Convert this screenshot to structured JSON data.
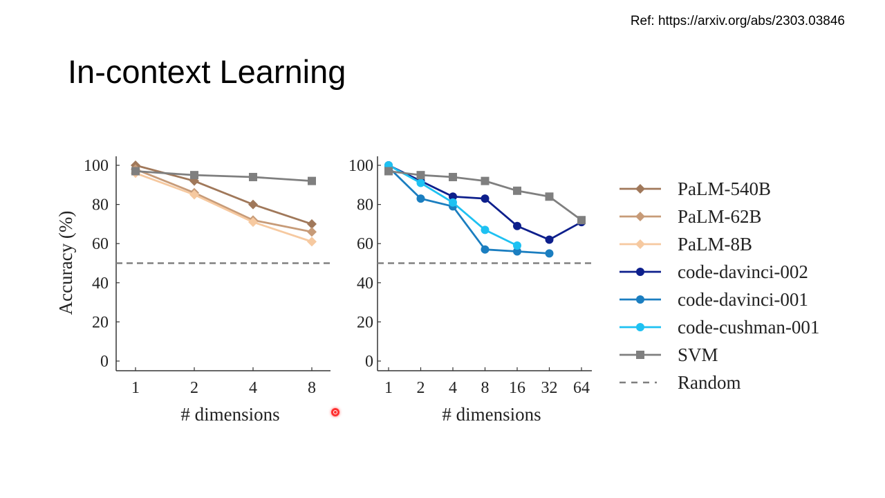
{
  "slide": {
    "ref": "Ref: https://arxiv.org/abs/2303.03846",
    "title": "In-context Learning"
  },
  "chart_data": [
    {
      "type": "line",
      "xlabel": "# dimensions",
      "ylabel": "Accuracy (%)",
      "x": [
        "1",
        "2",
        "4",
        "8"
      ],
      "ylim": [
        0,
        100
      ],
      "yticks": [
        0,
        20,
        40,
        60,
        80,
        100
      ],
      "series": [
        {
          "name": "PaLM-540B",
          "color": "#a0785a",
          "marker": "diamond",
          "values": [
            100,
            92,
            80,
            70
          ]
        },
        {
          "name": "PaLM-62B",
          "color": "#c79b78",
          "marker": "diamond",
          "values": [
            98,
            86,
            72,
            66
          ]
        },
        {
          "name": "PaLM-8B",
          "color": "#f6c9a0",
          "marker": "diamond",
          "values": [
            96,
            85,
            71,
            61
          ]
        },
        {
          "name": "SVM",
          "color": "#7f7f7f",
          "marker": "square",
          "values": [
            97,
            95,
            94,
            92
          ]
        }
      ],
      "reference_line": {
        "name": "Random",
        "value": 50
      }
    },
    {
      "type": "line",
      "xlabel": "# dimensions",
      "ylabel": "",
      "x": [
        "1",
        "2",
        "4",
        "8",
        "16",
        "32",
        "64"
      ],
      "ylim": [
        0,
        100
      ],
      "yticks": [
        0,
        20,
        40,
        60,
        80,
        100
      ],
      "series": [
        {
          "name": "code-davinci-002",
          "color": "#0d1f8c",
          "marker": "circle",
          "values": [
            100,
            92,
            84,
            83,
            69,
            62,
            71
          ]
        },
        {
          "name": "code-davinci-001",
          "color": "#1b7ec0",
          "marker": "circle",
          "values": [
            99,
            83,
            79,
            57,
            56,
            55,
            null
          ]
        },
        {
          "name": "code-cushman-001",
          "color": "#1ec1f2",
          "marker": "circle",
          "values": [
            100,
            91,
            81,
            67,
            59,
            null,
            null
          ]
        },
        {
          "name": "SVM",
          "color": "#7f7f7f",
          "marker": "square",
          "values": [
            97,
            95,
            94,
            92,
            87,
            84,
            72
          ]
        }
      ],
      "reference_line": {
        "name": "Random",
        "value": 50
      }
    }
  ],
  "legend": {
    "placement": "right",
    "entries": [
      {
        "label": "PaLM-540B",
        "color": "#a0785a",
        "marker": "diamond",
        "dashed": false
      },
      {
        "label": "PaLM-62B",
        "color": "#c79b78",
        "marker": "diamond",
        "dashed": false
      },
      {
        "label": "PaLM-8B",
        "color": "#f6c9a0",
        "marker": "diamond",
        "dashed": false
      },
      {
        "label": "code-davinci-002",
        "color": "#0d1f8c",
        "marker": "circle",
        "dashed": false
      },
      {
        "label": "code-davinci-001",
        "color": "#1b7ec0",
        "marker": "circle",
        "dashed": false
      },
      {
        "label": "code-cushman-001",
        "color": "#1ec1f2",
        "marker": "circle",
        "dashed": false
      },
      {
        "label": "SVM",
        "color": "#7f7f7f",
        "marker": "square",
        "dashed": false
      },
      {
        "label": "Random",
        "color": "#7f7f7f",
        "marker": "none",
        "dashed": true
      }
    ]
  }
}
